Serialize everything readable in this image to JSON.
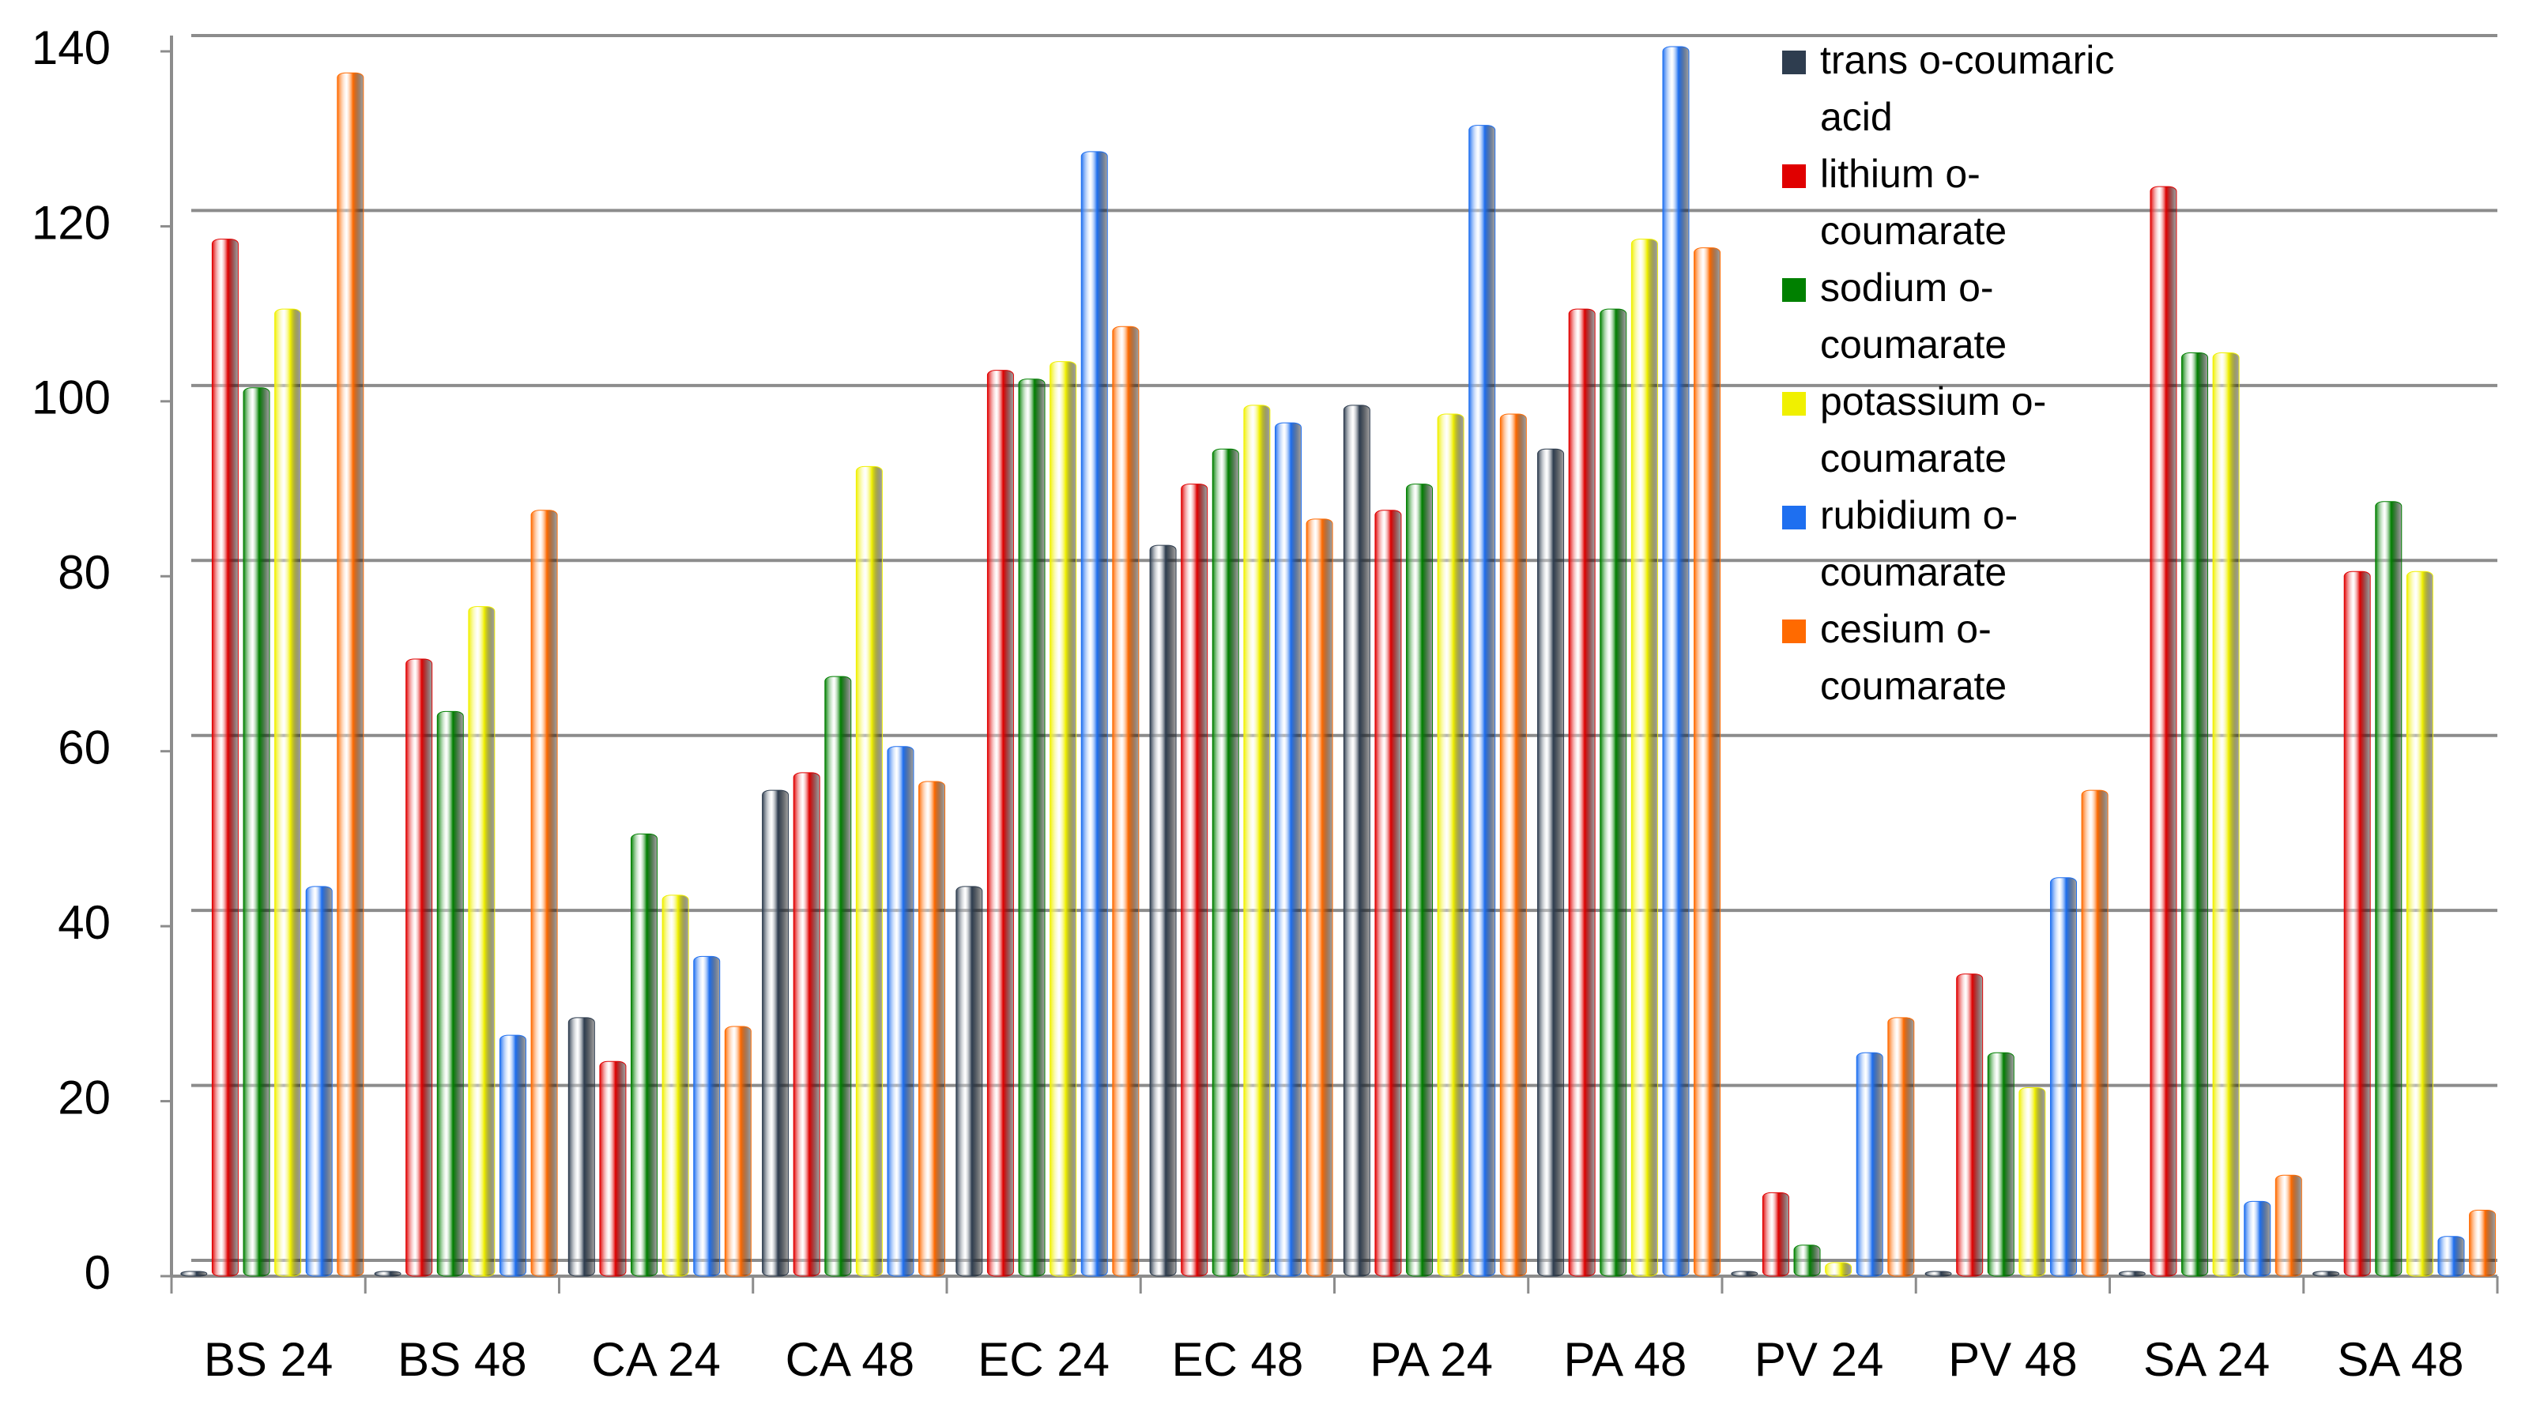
{
  "chart_data": {
    "type": "bar",
    "categories": [
      "BS 24",
      "BS 48",
      "CA 24",
      "CA 48",
      "EC 24",
      "EC 48",
      "PA 24",
      "PA 48",
      "PV 24",
      "PV 48",
      "SA 24",
      "SA 48"
    ],
    "series": [
      {
        "name": "trans o-coumaric acid",
        "color": "#2e3d4f",
        "values": [
          0,
          0,
          29,
          55,
          44,
          83,
          99,
          94,
          0,
          0,
          0,
          0
        ]
      },
      {
        "name": "lithium o-coumarate",
        "color": "#e00000",
        "values": [
          118,
          70,
          24,
          57,
          103,
          90,
          87,
          110,
          9,
          34,
          124,
          80
        ]
      },
      {
        "name": "sodium o-coumarate",
        "color": "#008000",
        "values": [
          101,
          64,
          50,
          68,
          102,
          94,
          90,
          110,
          3,
          25,
          105,
          88
        ]
      },
      {
        "name": "potassium o-coumarate",
        "color": "#f0f000",
        "values": [
          110,
          76,
          43,
          92,
          104,
          99,
          98,
          118,
          1,
          21,
          105,
          80
        ]
      },
      {
        "name": "rubidium o-coumarate",
        "color": "#1e6ff0",
        "values": [
          44,
          27,
          36,
          60,
          128,
          97,
          131,
          140,
          25,
          45,
          8,
          4
        ]
      },
      {
        "name": "cesium o-coumarate",
        "color": "#ff6a00",
        "values": [
          137,
          87,
          28,
          56,
          108,
          86,
          98,
          117,
          29,
          55,
          11,
          7
        ]
      }
    ],
    "ylim": [
      0,
      140
    ],
    "yticks": [
      0,
      20,
      40,
      60,
      80,
      100,
      120,
      140
    ],
    "grid": true,
    "legend": "top-right"
  }
}
